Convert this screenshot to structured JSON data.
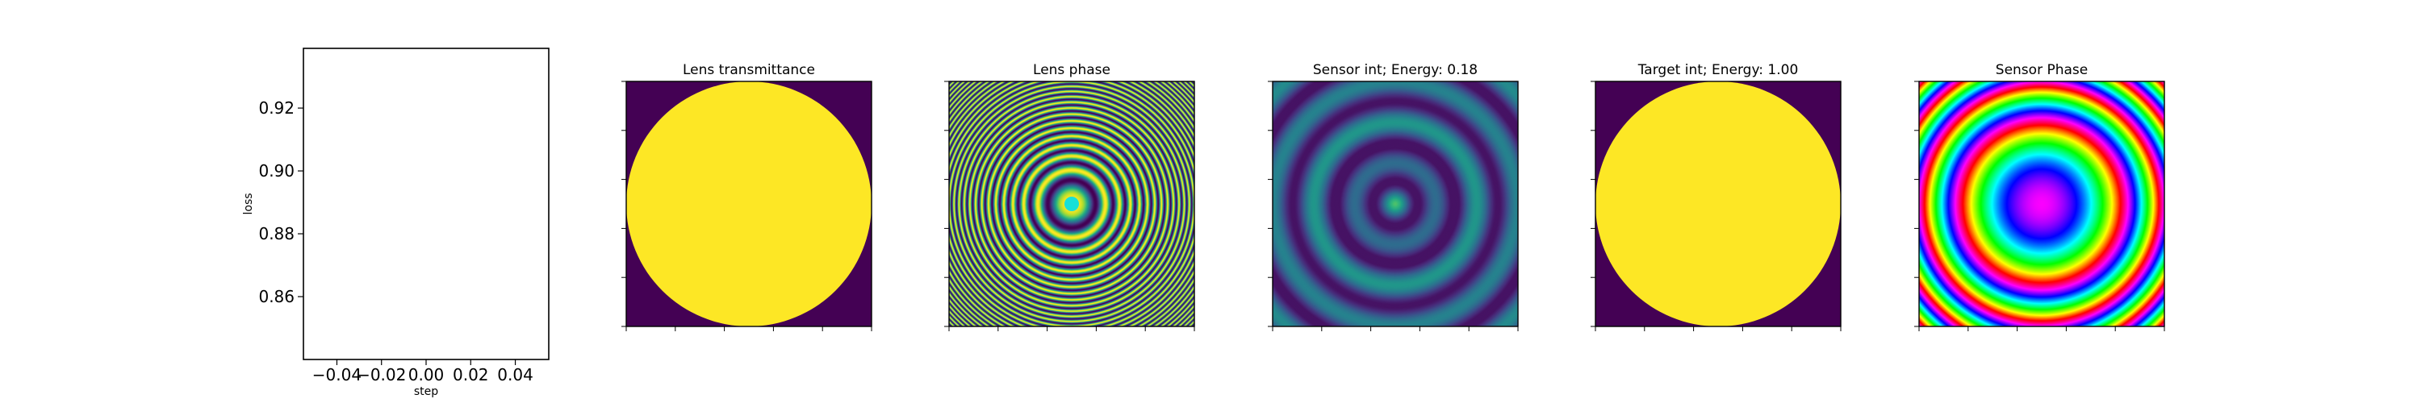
{
  "figure": {
    "background": "#ffffff",
    "panels": [
      {
        "id": "loss",
        "title": ""
      },
      {
        "id": "lens_transmittance",
        "title": "Lens transmittance"
      },
      {
        "id": "lens_phase",
        "title": "Lens phase"
      },
      {
        "id": "sensor_int",
        "title": "Sensor int; Energy: 0.18"
      },
      {
        "id": "target_int",
        "title": "Target int; Energy: 1.00"
      },
      {
        "id": "sensor_phase",
        "title": "Sensor Phase"
      }
    ]
  },
  "chart_data": [
    {
      "type": "line",
      "title": "",
      "xlabel": "step",
      "ylabel": "loss",
      "xlim": [
        -0.055,
        0.055
      ],
      "ylim": [
        0.84,
        0.939
      ],
      "xticks": [
        -0.04,
        -0.02,
        0.0,
        0.02,
        0.04
      ],
      "xtick_labels": [
        "−0.04",
        "−0.02",
        "0.00",
        "0.02",
        "0.04"
      ],
      "yticks": [
        0.86,
        0.88,
        0.9,
        0.92
      ],
      "ytick_labels": [
        "0.86",
        "0.88",
        "0.90",
        "0.92"
      ],
      "series": [
        {
          "x": [],
          "y": []
        }
      ],
      "grid": false
    },
    {
      "type": "heatmap",
      "title": "Lens transmittance",
      "pattern": "disk",
      "colormap": "viridis",
      "inside_value": 1.0,
      "outside_value": 0.0,
      "disk_radius_fraction": 1.0,
      "tick_labels_visible": false
    },
    {
      "type": "heatmap",
      "title": "Lens phase",
      "pattern": "chirped-rings",
      "colormap": "viridis-cyclic",
      "ring_count": 26,
      "center_color": "#18e0d8",
      "tick_labels_visible": false
    },
    {
      "type": "heatmap",
      "title": "Sensor int; Energy: 0.18",
      "energy": 0.18,
      "pattern": "interference-rings",
      "colormap": "viridis",
      "ring_count": 5,
      "tick_labels_visible": false
    },
    {
      "type": "heatmap",
      "title": "Target int; Energy: 1.00",
      "energy": 1.0,
      "pattern": "disk",
      "colormap": "viridis",
      "inside_value": 1.0,
      "outside_value": 0.0,
      "disk_radius_fraction": 1.0,
      "tick_labels_visible": false
    },
    {
      "type": "heatmap",
      "title": "Sensor Phase",
      "pattern": "hue-rings",
      "colormap": "hsv",
      "ring_count": 4,
      "tick_labels_visible": false
    }
  ],
  "colors": {
    "axis": "#000000",
    "viridis_low": "#440154",
    "viridis_high": "#fde725"
  }
}
